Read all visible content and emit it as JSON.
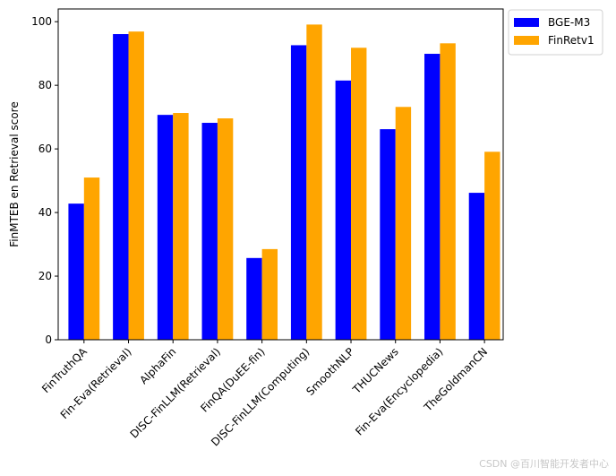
{
  "chart_data": {
    "type": "bar",
    "title": "",
    "xlabel": "",
    "ylabel": "FinMTEB en Retrieval score",
    "categories": [
      "FinTruthQA",
      "Fin-Eva(Retrieval)",
      "AlphaFin",
      "DISC-FinLLM(Retrieval)",
      "FinQA(DuEE-fin)",
      "DISC-FinLLM(Computing)",
      "SmoothNLP",
      "THUCNews",
      "Fin-Eva(Encyclopedia)",
      "TheGoldmanCN"
    ],
    "series": [
      {
        "name": "BGE-M3",
        "color": "#0000ff",
        "values": [
          42.8,
          96.1,
          70.7,
          68.2,
          25.7,
          92.6,
          81.5,
          66.2,
          89.9,
          46.2
        ]
      },
      {
        "name": "FinRetv1",
        "color": "#ffa500",
        "values": [
          51.0,
          96.9,
          71.3,
          69.6,
          28.5,
          99.1,
          91.8,
          73.2,
          93.2,
          59.1
        ]
      }
    ],
    "ylim": [
      0,
      104
    ],
    "yticks": [
      0,
      20,
      40,
      60,
      80,
      100
    ],
    "grid": false,
    "legend_position": "outside top-right"
  },
  "watermark": "CSDN @百川智能开发者中心"
}
